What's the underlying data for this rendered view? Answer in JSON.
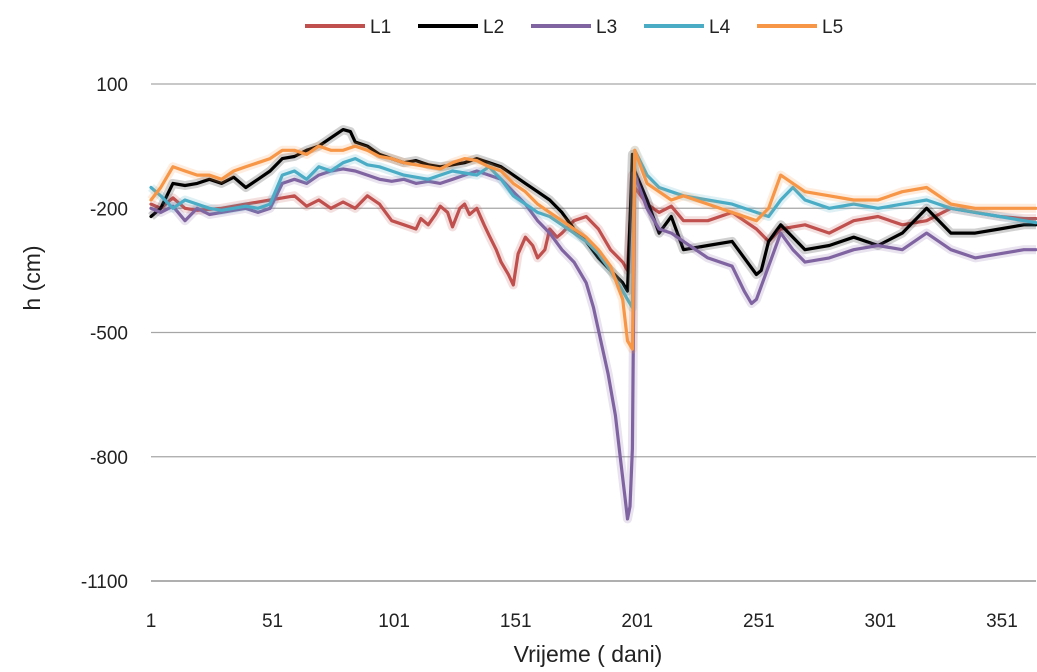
{
  "chart_data": {
    "type": "line",
    "title": "",
    "xlabel": "Vrijeme ( dani)",
    "ylabel": "h (cm)",
    "xlim": [
      1,
      365
    ],
    "ylim": [
      -1100,
      100
    ],
    "x_ticks": [
      1,
      51,
      101,
      151,
      201,
      251,
      301,
      351
    ],
    "y_ticks": [
      100,
      -200,
      -500,
      -800,
      -1100
    ],
    "grid": "horizontal",
    "legend_position": "top",
    "series": [
      {
        "name": "L1",
        "color": "#c0504d",
        "x": [
          1,
          5,
          10,
          15,
          20,
          30,
          40,
          50,
          55,
          60,
          65,
          70,
          75,
          80,
          85,
          90,
          95,
          100,
          105,
          110,
          112,
          115,
          118,
          120,
          123,
          125,
          128,
          130,
          132,
          135,
          138,
          140,
          143,
          145,
          148,
          150,
          152,
          155,
          158,
          160,
          163,
          165,
          168,
          170,
          175,
          180,
          185,
          190,
          195,
          197,
          199,
          200,
          205,
          210,
          215,
          220,
          230,
          240,
          250,
          255,
          260,
          270,
          280,
          290,
          300,
          310,
          320,
          330,
          340,
          350,
          360,
          365
        ],
        "y": [
          -190,
          -200,
          -175,
          -200,
          -205,
          -200,
          -190,
          -180,
          -175,
          -170,
          -195,
          -180,
          -200,
          -185,
          -200,
          -170,
          -190,
          -230,
          -240,
          -250,
          -225,
          -240,
          -215,
          -195,
          -210,
          -245,
          -200,
          -190,
          -215,
          -200,
          -240,
          -265,
          -300,
          -330,
          -360,
          -385,
          -310,
          -270,
          -290,
          -320,
          -300,
          -250,
          -270,
          -260,
          -230,
          -220,
          -250,
          -300,
          -330,
          -350,
          -120,
          -150,
          -190,
          -210,
          -195,
          -230,
          -230,
          -210,
          -250,
          -280,
          -250,
          -240,
          -260,
          -230,
          -220,
          -240,
          -230,
          -200,
          -210,
          -220,
          -225,
          -225
        ]
      },
      {
        "name": "L2",
        "color": "#000000",
        "x": [
          1,
          5,
          10,
          15,
          20,
          25,
          30,
          35,
          40,
          45,
          50,
          55,
          60,
          65,
          70,
          75,
          80,
          83,
          85,
          90,
          95,
          100,
          105,
          110,
          115,
          120,
          125,
          130,
          135,
          140,
          145,
          150,
          155,
          160,
          165,
          170,
          175,
          180,
          185,
          190,
          195,
          197,
          199,
          200,
          205,
          210,
          215,
          220,
          230,
          240,
          250,
          252,
          255,
          260,
          270,
          280,
          290,
          300,
          310,
          320,
          330,
          340,
          350,
          360,
          365
        ],
        "y": [
          -220,
          -200,
          -140,
          -145,
          -140,
          -130,
          -140,
          -125,
          -150,
          -130,
          -110,
          -80,
          -75,
          -60,
          -50,
          -30,
          -10,
          -15,
          -40,
          -50,
          -70,
          -80,
          -90,
          -85,
          -95,
          -100,
          -95,
          -90,
          -80,
          -90,
          -100,
          -120,
          -140,
          -160,
          -180,
          -210,
          -250,
          -280,
          -320,
          -350,
          -380,
          -400,
          -70,
          -110,
          -180,
          -260,
          -220,
          -300,
          -290,
          -280,
          -360,
          -350,
          -280,
          -240,
          -300,
          -290,
          -270,
          -290,
          -260,
          -200,
          -260,
          -260,
          -250,
          -240,
          -240
        ]
      },
      {
        "name": "L3",
        "color": "#8064a2",
        "x": [
          1,
          5,
          10,
          15,
          20,
          25,
          30,
          35,
          40,
          45,
          50,
          55,
          60,
          65,
          70,
          75,
          80,
          85,
          90,
          95,
          100,
          105,
          110,
          115,
          120,
          125,
          130,
          135,
          140,
          145,
          150,
          155,
          160,
          165,
          170,
          175,
          180,
          183,
          186,
          189,
          192,
          194,
          196,
          197,
          198,
          199,
          200,
          205,
          210,
          215,
          220,
          230,
          240,
          245,
          248,
          250,
          255,
          260,
          265,
          270,
          280,
          290,
          300,
          310,
          320,
          330,
          340,
          350,
          360,
          365
        ],
        "y": [
          -200,
          -210,
          -195,
          -230,
          -200,
          -215,
          -210,
          -205,
          -200,
          -210,
          -200,
          -140,
          -130,
          -140,
          -120,
          -110,
          -105,
          -110,
          -120,
          -130,
          -135,
          -130,
          -140,
          -135,
          -140,
          -130,
          -120,
          -110,
          -120,
          -130,
          -160,
          -190,
          -230,
          -260,
          -300,
          -330,
          -380,
          -440,
          -520,
          -600,
          -700,
          -800,
          -900,
          -950,
          -920,
          -780,
          -120,
          -200,
          -250,
          -260,
          -280,
          -320,
          -340,
          -400,
          -430,
          -420,
          -340,
          -260,
          -300,
          -330,
          -320,
          -300,
          -290,
          -300,
          -260,
          -300,
          -320,
          -310,
          -300,
          -300
        ]
      },
      {
        "name": "L4",
        "color": "#4bacc6",
        "x": [
          1,
          5,
          10,
          15,
          20,
          25,
          30,
          35,
          40,
          45,
          50,
          55,
          60,
          65,
          70,
          75,
          80,
          85,
          90,
          95,
          100,
          105,
          110,
          115,
          120,
          125,
          130,
          135,
          140,
          145,
          150,
          155,
          160,
          165,
          170,
          175,
          180,
          185,
          190,
          195,
          197,
          199,
          200,
          205,
          210,
          215,
          220,
          230,
          240,
          250,
          255,
          260,
          265,
          270,
          280,
          290,
          300,
          310,
          320,
          330,
          340,
          350,
          360,
          365
        ],
        "y": [
          -150,
          -170,
          -200,
          -180,
          -190,
          -200,
          -205,
          -200,
          -195,
          -200,
          -190,
          -120,
          -110,
          -130,
          -100,
          -110,
          -90,
          -80,
          -95,
          -100,
          -110,
          -120,
          -125,
          -130,
          -120,
          -110,
          -115,
          -120,
          -100,
          -130,
          -170,
          -190,
          -210,
          -220,
          -240,
          -260,
          -280,
          -310,
          -350,
          -400,
          -420,
          -440,
          -60,
          -120,
          -150,
          -160,
          -170,
          -180,
          -190,
          -210,
          -220,
          -180,
          -150,
          -180,
          -200,
          -190,
          -200,
          -190,
          -180,
          -200,
          -210,
          -220,
          -230,
          -235
        ]
      },
      {
        "name": "L5",
        "color": "#f79646",
        "x": [
          1,
          5,
          10,
          15,
          20,
          25,
          30,
          35,
          40,
          45,
          50,
          55,
          60,
          65,
          70,
          75,
          80,
          85,
          90,
          95,
          100,
          105,
          110,
          115,
          120,
          125,
          130,
          135,
          140,
          145,
          150,
          155,
          160,
          165,
          170,
          175,
          180,
          185,
          190,
          195,
          197,
          199,
          200,
          205,
          210,
          215,
          220,
          230,
          240,
          250,
          255,
          260,
          265,
          270,
          280,
          290,
          300,
          310,
          320,
          330,
          340,
          350,
          360,
          365
        ],
        "y": [
          -180,
          -150,
          -100,
          -110,
          -120,
          -120,
          -130,
          -110,
          -100,
          -90,
          -80,
          -60,
          -60,
          -70,
          -50,
          -60,
          -60,
          -50,
          -60,
          -75,
          -80,
          -90,
          -95,
          -100,
          -105,
          -90,
          -80,
          -85,
          -100,
          -110,
          -140,
          -160,
          -190,
          -210,
          -230,
          -250,
          -270,
          -300,
          -340,
          -420,
          -520,
          -540,
          -60,
          -140,
          -160,
          -180,
          -170,
          -190,
          -210,
          -230,
          -200,
          -120,
          -140,
          -160,
          -170,
          -180,
          -180,
          -160,
          -150,
          -190,
          -200,
          -200,
          -200,
          -200
        ]
      }
    ]
  }
}
